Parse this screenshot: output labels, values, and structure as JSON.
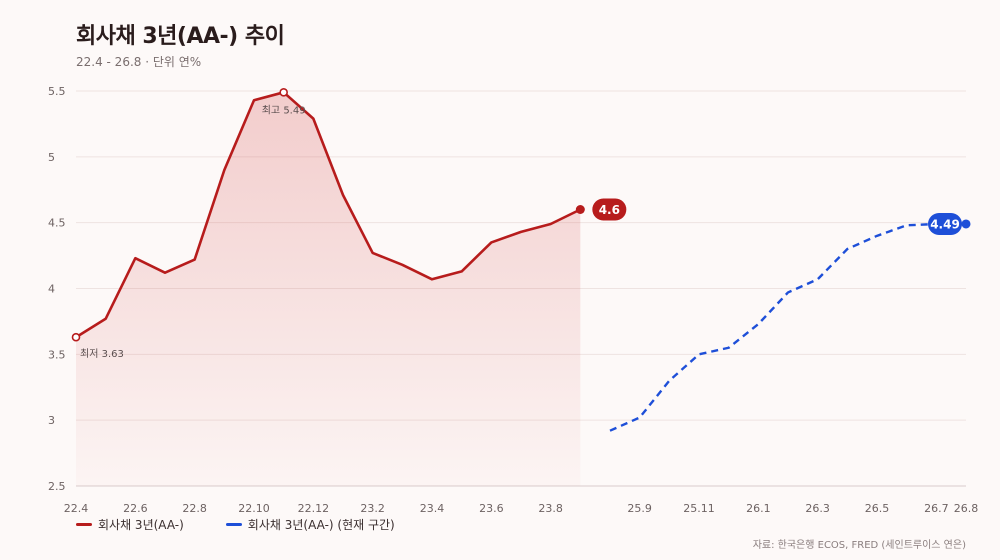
{
  "header": {
    "title": "회사채 3년(AA-) 추이",
    "subtitle": "22.4 - 26.8 · 단위 연%"
  },
  "footer": {
    "source": "자료: 한국은행 ECOS, FRED (세인트루이스 연은)"
  },
  "colors": {
    "actual": "#b71c1c",
    "forecast": "#1e4fd8",
    "grid": "#eee3e1",
    "axis_text": "#6d6262"
  },
  "chart_data": {
    "type": "line",
    "title": "회사채 3년(AA-) 추이",
    "subtitle": "22.4 - 26.8 · 단위 연%",
    "ylim": [
      2.5,
      5.5
    ],
    "yticks": [
      "2.5",
      "3",
      "3.5",
      "4",
      "4.5",
      "5",
      "5.5"
    ],
    "xticks": [
      "22.4",
      "22.6",
      "22.8",
      "22.10",
      "22.12",
      "23.2",
      "23.4",
      "23.6",
      "23.8",
      "25.9",
      "25.11",
      "26.1",
      "26.3",
      "26.5",
      "26.7",
      "26.8"
    ],
    "grid": true,
    "legend_position": "bottom-left",
    "series": [
      {
        "name": "회사채 3년(AA-)",
        "style": "solid-area",
        "x": [
          "22.4",
          "22.5",
          "22.6",
          "22.7",
          "22.8",
          "22.9",
          "22.10",
          "22.11",
          "22.12",
          "23.1",
          "23.2",
          "23.3",
          "23.4",
          "23.5",
          "23.6",
          "23.7",
          "23.8",
          "23.9"
        ],
        "values": [
          3.63,
          3.77,
          4.23,
          4.12,
          4.22,
          4.9,
          5.43,
          5.49,
          5.29,
          4.71,
          4.27,
          4.18,
          4.07,
          4.13,
          4.35,
          4.43,
          4.49,
          4.6
        ],
        "end_label": "4.6"
      },
      {
        "name": "회사채 3년(AA-) (현재 구간)",
        "style": "dashed",
        "x": [
          "25.8",
          "25.9",
          "25.10",
          "25.11",
          "25.12",
          "26.1",
          "26.2",
          "26.3",
          "26.4",
          "26.5",
          "26.6",
          "26.7",
          "26.8"
        ],
        "values": [
          2.92,
          3.02,
          3.3,
          3.5,
          3.55,
          3.73,
          3.97,
          4.07,
          4.3,
          4.4,
          4.48,
          4.49,
          4.49
        ],
        "end_label": "4.49"
      }
    ],
    "annotations": [
      {
        "label": "최고 5.49",
        "x": "22.11",
        "y": 5.49
      },
      {
        "label": "최저 3.63",
        "x": "22.4",
        "y": 3.63
      }
    ]
  }
}
